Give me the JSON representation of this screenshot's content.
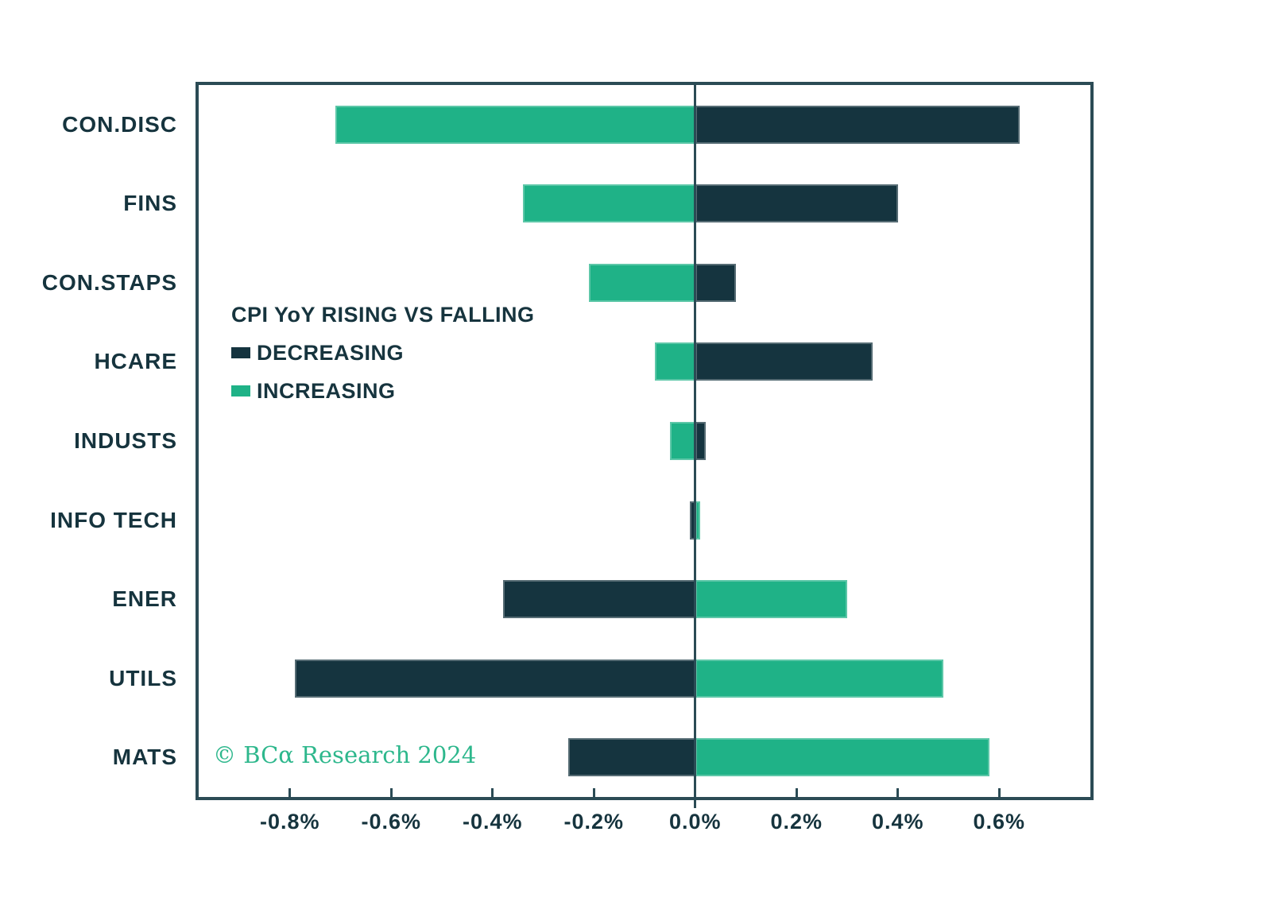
{
  "chart_data": {
    "type": "bar",
    "orientation": "horizontal-diverging",
    "title": "CPI YoY RISING VS FALLING",
    "categories": [
      "CON.DISC",
      "FINS",
      "CON.STAPS",
      "HCARE",
      "INDUSTS",
      "INFO TECH",
      "ENER",
      "UTILS",
      "MATS"
    ],
    "series": [
      {
        "name": "DECREASING",
        "color": "#15343f",
        "values": [
          0.64,
          0.4,
          0.08,
          0.35,
          0.02,
          -0.01,
          -0.38,
          -0.79,
          -0.25
        ]
      },
      {
        "name": "INCREASING",
        "color": "#1fb287",
        "values": [
          -0.71,
          -0.34,
          -0.21,
          -0.08,
          -0.05,
          0.01,
          0.3,
          0.49,
          0.58
        ]
      }
    ],
    "unit": "%",
    "xlim": [
      -0.98,
      0.78
    ],
    "xticks": [
      -0.8,
      -0.6,
      -0.4,
      -0.2,
      0,
      0.2,
      0.4,
      0.6
    ],
    "xtick_labels": [
      "-0.8%",
      "-0.6%",
      "-0.4%",
      "-0.2%",
      "0.0%",
      "0.2%",
      "0.4%",
      "0.6%"
    ],
    "grid": false,
    "zero_line": true,
    "legend_position": "inside-left"
  },
  "legend": {
    "title": "CPI YoY RISING VS FALLING",
    "items": [
      {
        "label": "DECREASING",
        "color": "#15343f"
      },
      {
        "label": "INCREASING",
        "color": "#1fb287"
      }
    ]
  },
  "footer": {
    "copyright": "© BCα Research 2024",
    "color": "#2db78c"
  },
  "colors": {
    "frame": "#2b4b55",
    "axis_text": "#16343e",
    "background": "#ffffff",
    "decreasing_bar": "#15343f",
    "increasing_bar": "#1fb287",
    "copyright_green": "#2db78c"
  }
}
